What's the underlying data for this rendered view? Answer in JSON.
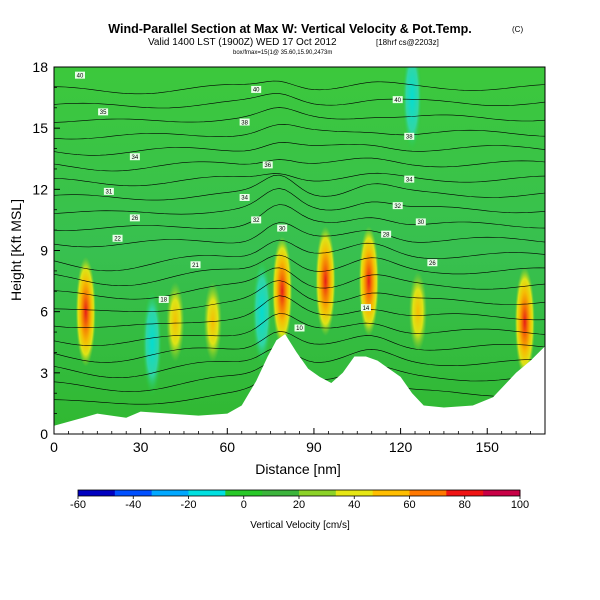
{
  "chart_data": {
    "type": "heatmap",
    "title": "Wind-Parallel Section at Max W: Vertical Velocity & Pot.Temp.",
    "title_mark": "(C)",
    "subtitle": "Valid 1400 LST (1900Z) WED 17 Oct 2012",
    "subtitle_note": "[18hrf cs@2203z]",
    "subtitle2": "box/fmax=15(1@ 35.60,15.90,2473m",
    "xlabel": "Distance [nm]",
    "ylabel": "Height [Kft MSL]",
    "xlim": [
      0,
      170
    ],
    "ylim": [
      0,
      18
    ],
    "xticks": [
      0,
      30,
      60,
      90,
      120,
      150
    ],
    "yticks": [
      0,
      3,
      6,
      9,
      12,
      15,
      18
    ],
    "colorbar": {
      "label": "Vertical Velocity [cm/s]",
      "min": -60,
      "max": 100,
      "ticks": [
        -60,
        -40,
        -20,
        0,
        20,
        40,
        60,
        80,
        100
      ],
      "colors": [
        "#0000c0",
        "#0050ff",
        "#00a8ff",
        "#00e0e0",
        "#28c828",
        "#3cb43c",
        "#8cd228",
        "#e6e614",
        "#ffbe00",
        "#ff7800",
        "#f01414",
        "#c80046"
      ]
    },
    "terrain": [
      [
        0,
        0.4
      ],
      [
        10,
        0.8
      ],
      [
        15,
        1.0
      ],
      [
        25,
        0.8
      ],
      [
        30,
        1.1
      ],
      [
        40,
        1.0
      ],
      [
        50,
        0.9
      ],
      [
        60,
        1.0
      ],
      [
        65,
        1.4
      ],
      [
        70,
        2.6
      ],
      [
        74,
        3.8
      ],
      [
        77,
        4.6
      ],
      [
        80,
        4.9
      ],
      [
        84,
        4.0
      ],
      [
        88,
        3.2
      ],
      [
        92,
        2.8
      ],
      [
        96,
        2.5
      ],
      [
        100,
        3.0
      ],
      [
        104,
        3.8
      ],
      [
        108,
        3.8
      ],
      [
        112,
        3.6
      ],
      [
        116,
        3.2
      ],
      [
        120,
        2.8
      ],
      [
        124,
        2.0
      ],
      [
        128,
        1.4
      ],
      [
        135,
        1.3
      ],
      [
        145,
        1.4
      ],
      [
        152,
        1.8
      ],
      [
        160,
        3.0
      ],
      [
        165,
        3.6
      ],
      [
        170,
        4.3
      ]
    ],
    "updrafts": [
      {
        "x": 11,
        "y": 6.0,
        "w": 82
      },
      {
        "x": 42,
        "y": 5.5,
        "w": 50
      },
      {
        "x": 55,
        "y": 5.5,
        "w": 45
      },
      {
        "x": 79,
        "y": 7.0,
        "w": 85
      },
      {
        "x": 94,
        "y": 7.5,
        "w": 75
      },
      {
        "x": 109,
        "y": 7.5,
        "w": 98
      },
      {
        "x": 126,
        "y": 6.0,
        "w": 40
      },
      {
        "x": 163,
        "y": 5.5,
        "w": 60
      }
    ],
    "downdrafts": [
      {
        "x": 34,
        "y": 4.5,
        "w": -25
      },
      {
        "x": 72,
        "y": 6.0,
        "w": -15
      },
      {
        "x": 124,
        "y": 16.5,
        "w": -40
      }
    ],
    "isentrope_labels": [
      {
        "x": 9,
        "y": 17.6,
        "text": "40"
      },
      {
        "x": 17,
        "y": 15.8,
        "text": "35"
      },
      {
        "x": 28,
        "y": 13.6,
        "text": "34"
      },
      {
        "x": 19,
        "y": 11.9,
        "text": "31"
      },
      {
        "x": 28,
        "y": 10.6,
        "text": "26"
      },
      {
        "x": 22,
        "y": 9.6,
        "text": "22"
      },
      {
        "x": 49,
        "y": 8.3,
        "text": "21"
      },
      {
        "x": 38,
        "y": 6.6,
        "text": "18"
      },
      {
        "x": 70,
        "y": 16.9,
        "text": "40"
      },
      {
        "x": 66,
        "y": 15.3,
        "text": "38"
      },
      {
        "x": 74,
        "y": 13.2,
        "text": "36"
      },
      {
        "x": 66,
        "y": 11.6,
        "text": "34"
      },
      {
        "x": 70,
        "y": 10.5,
        "text": "32"
      },
      {
        "x": 79,
        "y": 10.1,
        "text": "30"
      },
      {
        "x": 85,
        "y": 5.2,
        "text": "10"
      },
      {
        "x": 108,
        "y": 6.2,
        "text": "14"
      },
      {
        "x": 119,
        "y": 16.4,
        "text": "40"
      },
      {
        "x": 123,
        "y": 14.6,
        "text": "38"
      },
      {
        "x": 123,
        "y": 12.5,
        "text": "34"
      },
      {
        "x": 119,
        "y": 11.2,
        "text": "32"
      },
      {
        "x": 115,
        "y": 9.8,
        "text": "28"
      },
      {
        "x": 127,
        "y": 10.4,
        "text": "30"
      },
      {
        "x": 131,
        "y": 8.4,
        "text": "26"
      }
    ]
  }
}
